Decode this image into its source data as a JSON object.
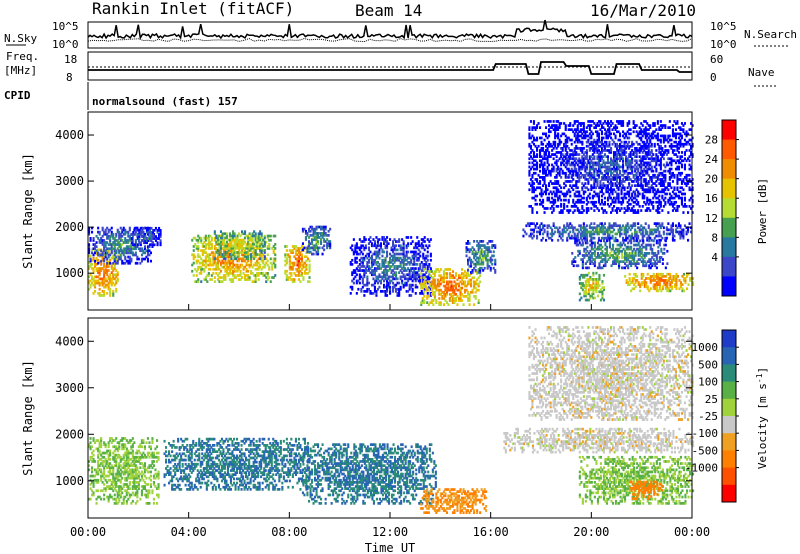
{
  "header": {
    "title": "Rankin Inlet (fitACF)",
    "beam": "Beam 14",
    "date": "16/Mar/2010"
  },
  "top_panels": {
    "nsky_label": "N.Sky",
    "nsky_ticks": [
      "10^5",
      "10^0"
    ],
    "nsearch_label": "N.Search",
    "nsearch_ticks": [
      "10^5",
      "10^0"
    ],
    "freq_label": "Freq.",
    "freq_unit": "[MHz]",
    "freq_ticks": [
      "18",
      "8"
    ],
    "nave_label": "Nave",
    "nave_ticks": [
      "60",
      "0"
    ],
    "cpid_label": "CPID",
    "cpid_text": "normalsound (fast) 157"
  },
  "axes": {
    "xlabel": "Time UT",
    "xticks": [
      "00:00",
      "04:00",
      "08:00",
      "12:00",
      "16:00",
      "20:00",
      "00:00"
    ],
    "ylabel": "Slant Range [km]",
    "yticks": [
      "1000",
      "2000",
      "3000",
      "4000"
    ]
  },
  "colorbars": {
    "power": {
      "label": "Power [dB]",
      "ticks": [
        "28",
        "24",
        "20",
        "16",
        "12",
        "8",
        "4"
      ],
      "colors": [
        "#ff0000",
        "#ff5a00",
        "#f08c00",
        "#e6c300",
        "#b4dc32",
        "#46a050",
        "#2878a0",
        "#3c46c8",
        "#0000ff"
      ]
    },
    "velocity": {
      "label": "Velocity [m s-1]",
      "label_text": "Velocity [m s",
      "label_sup": "-1",
      "label_end": "]",
      "ticks": [
        "1000",
        "500",
        "100",
        "25",
        "-25",
        "-100",
        "-500",
        "-1000"
      ],
      "colors": [
        "#1e3cc8",
        "#2864b4",
        "#2a8c78",
        "#58b046",
        "#a0d23c",
        "#c8c8c8",
        "#f0a020",
        "#ff8000",
        "#ff5000",
        "#ff0000"
      ]
    }
  },
  "chart_data": [
    {
      "type": "heatmap",
      "title": "Power",
      "x_unit": "hours UT",
      "xlim": [
        0,
        24
      ],
      "ylim": [
        200,
        4500
      ],
      "ylabel": "Slant Range [km]",
      "colorbar_label": "Power [dB]",
      "regions": [
        {
          "t0": 0.0,
          "t1": 1.2,
          "r0": 500,
          "r1": 1500,
          "power": 28
        },
        {
          "t0": 0.0,
          "t1": 2.6,
          "r0": 1200,
          "r1": 2000,
          "power": 12
        },
        {
          "t0": 1.7,
          "t1": 2.9,
          "r0": 1600,
          "r1": 2000,
          "power": 10
        },
        {
          "t0": 4.1,
          "t1": 7.4,
          "r0": 800,
          "r1": 1800,
          "power": 26
        },
        {
          "t0": 5.0,
          "t1": 7.0,
          "r0": 1300,
          "r1": 1900,
          "power": 20
        },
        {
          "t0": 7.8,
          "t1": 8.8,
          "r0": 800,
          "r1": 1600,
          "power": 28
        },
        {
          "t0": 8.5,
          "t1": 9.6,
          "r0": 1400,
          "r1": 2000,
          "power": 14
        },
        {
          "t0": 10.4,
          "t1": 13.6,
          "r0": 500,
          "r1": 1800,
          "power": 10
        },
        {
          "t0": 13.2,
          "t1": 15.6,
          "r0": 300,
          "r1": 1100,
          "power": 28
        },
        {
          "t0": 15.0,
          "t1": 16.2,
          "r0": 1000,
          "r1": 1700,
          "power": 14
        },
        {
          "t0": 17.2,
          "t1": 24.0,
          "r0": 1700,
          "r1": 2100,
          "power": 12
        },
        {
          "t0": 19.2,
          "t1": 23.0,
          "r0": 1100,
          "r1": 1700,
          "power": 14
        },
        {
          "t0": 19.5,
          "t1": 20.5,
          "r0": 400,
          "r1": 1000,
          "power": 22
        },
        {
          "t0": 21.3,
          "t1": 24.0,
          "r0": 600,
          "r1": 1000,
          "power": 28
        },
        {
          "t0": 17.5,
          "t1": 24.0,
          "r0": 2300,
          "r1": 4300,
          "power": 6
        }
      ]
    },
    {
      "type": "heatmap",
      "title": "Velocity",
      "x_unit": "hours UT",
      "xlim": [
        0,
        24
      ],
      "ylim": [
        200,
        4500
      ],
      "ylabel": "Slant Range [km]",
      "colorbar_label": "Velocity [m s-1]",
      "regions": [
        {
          "t0": 0.0,
          "t1": 2.8,
          "r0": 500,
          "r1": 1900,
          "velocity": 100
        },
        {
          "t0": 3.0,
          "t1": 8.8,
          "r0": 800,
          "r1": 1900,
          "velocity": 500
        },
        {
          "t0": 8.5,
          "t1": 13.8,
          "r0": 500,
          "r1": 1800,
          "velocity": 500
        },
        {
          "t0": 13.2,
          "t1": 15.8,
          "r0": 300,
          "r1": 800,
          "velocity": -100
        },
        {
          "t0": 16.5,
          "t1": 24.0,
          "r0": 1600,
          "r1": 2100,
          "velocity": 0
        },
        {
          "t0": 19.5,
          "t1": 24.0,
          "r0": 500,
          "r1": 1500,
          "velocity": 100
        },
        {
          "t0": 21.5,
          "t1": 22.8,
          "r0": 600,
          "r1": 1000,
          "velocity": -300
        },
        {
          "t0": 17.5,
          "t1": 24.0,
          "r0": 2300,
          "r1": 4300,
          "velocity": 0
        }
      ]
    }
  ]
}
